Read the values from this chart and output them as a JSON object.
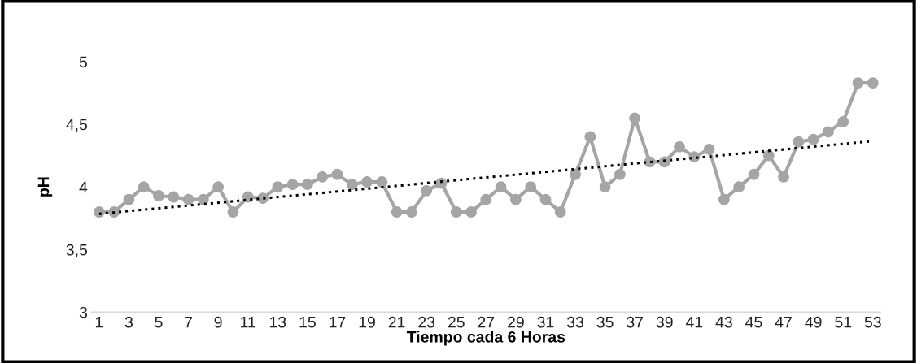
{
  "chart_data": {
    "type": "line",
    "xlabel": "Tiempo cada 6 Horas",
    "ylabel": "pH",
    "x": [
      1,
      2,
      3,
      4,
      5,
      6,
      7,
      8,
      9,
      10,
      11,
      12,
      13,
      14,
      15,
      16,
      17,
      18,
      19,
      20,
      21,
      22,
      23,
      24,
      25,
      26,
      27,
      28,
      29,
      30,
      31,
      32,
      33,
      34,
      35,
      36,
      37,
      38,
      39,
      40,
      41,
      42,
      43,
      44,
      45,
      46,
      47,
      48,
      49,
      50,
      51,
      52,
      53
    ],
    "series": [
      {
        "color": "#a5a5a5",
        "marker": "circle",
        "line_style": "solid",
        "values": [
          3.8,
          3.8,
          3.9,
          4.0,
          3.93,
          3.92,
          3.9,
          3.9,
          4.0,
          3.8,
          3.92,
          3.91,
          4.0,
          4.02,
          4.02,
          4.08,
          4.1,
          4.02,
          4.04,
          4.04,
          3.8,
          3.8,
          3.97,
          4.03,
          3.8,
          3.8,
          3.9,
          4.0,
          3.9,
          4.0,
          3.9,
          3.8,
          4.1,
          4.4,
          4.0,
          4.1,
          4.55,
          4.2,
          4.2,
          4.32,
          4.24,
          4.3,
          3.9,
          4.0,
          4.1,
          4.25,
          4.08,
          4.36,
          4.38,
          4.44,
          4.52,
          4.83,
          4.83
        ]
      },
      {
        "type": "line",
        "color": "#000000",
        "marker": "none",
        "line_style": "dotted",
        "x": [
          1,
          53
        ],
        "values": [
          3.785,
          4.366
        ]
      }
    ],
    "xlim": [
      0.5,
      53.5
    ],
    "xticks": [
      1,
      3,
      5,
      7,
      9,
      11,
      13,
      15,
      17,
      19,
      21,
      23,
      25,
      27,
      29,
      31,
      33,
      35,
      37,
      39,
      41,
      43,
      45,
      47,
      49,
      51,
      53
    ],
    "ylim": [
      3,
      5
    ],
    "yticks": [
      3,
      {
        "value": 3.5,
        "label": "3,5"
      },
      4,
      {
        "value": 4.5,
        "label": "4,5"
      },
      5
    ],
    "grid": false
  }
}
